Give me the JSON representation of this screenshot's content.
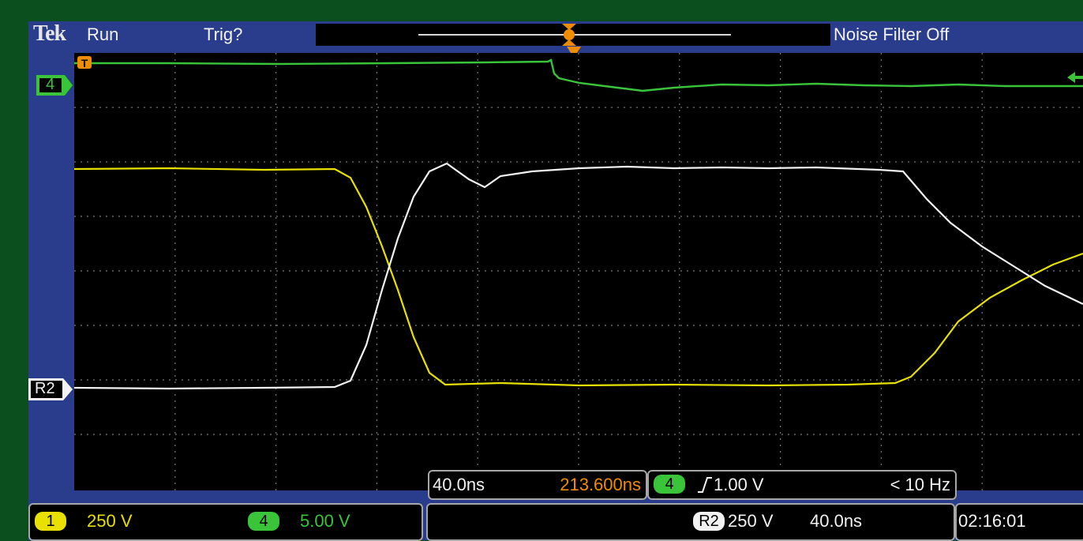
{
  "header": {
    "brand": "Tek",
    "run_state": "Run",
    "trigger_state": "Trig?",
    "noise_filter": "Noise Filter Off"
  },
  "markers": {
    "channel4": "4",
    "reference2": "R2",
    "trigger_pos": "T"
  },
  "horizontal": {
    "scale": "40.0ns",
    "position": "213.600ns"
  },
  "trigger": {
    "source": "4",
    "level": "1.00 V",
    "frequency": "< 10 Hz"
  },
  "channels": {
    "ch1_tag": "1",
    "ch1_scale": "250 V",
    "ch4_tag": "4",
    "ch4_scale": "5.00 V"
  },
  "reference": {
    "tag": "R2",
    "scale": "250 V",
    "time": "40.0ns"
  },
  "clock": "02:16:01",
  "colors": {
    "ch1": "#e8e000",
    "ch4": "#39c43a",
    "ref2": "#f2f2f2",
    "trigger": "#f08c00",
    "frame": "#2a3d8c",
    "outer": "#0c4f1f"
  }
}
